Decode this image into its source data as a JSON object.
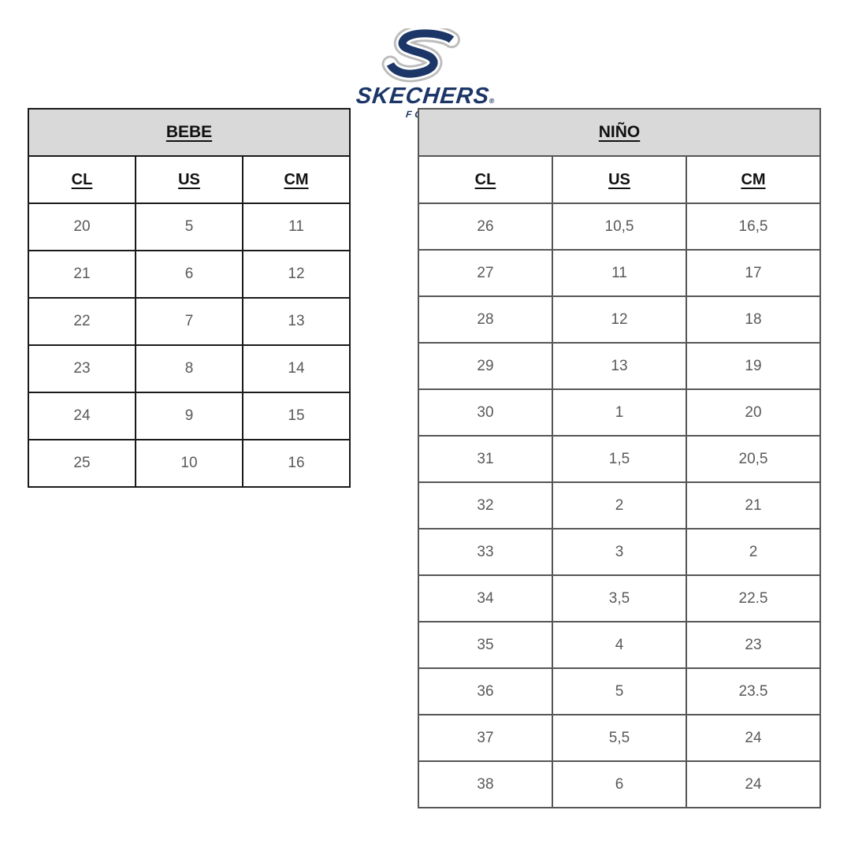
{
  "logo": {
    "brand": "SKECHERS",
    "registered": "®",
    "tagline": "FOOTWEAR",
    "navy": "#1c3667",
    "gray": "#bcbcbc"
  },
  "colors": {
    "page_bg": "#ffffff",
    "header_bg": "#d9d9d9",
    "header_text": "#111111",
    "cell_text": "#595959",
    "table1_border": "#1a1a1a",
    "table2_border": "#565656"
  },
  "tables": [
    {
      "id": "bebe",
      "title": "BEBE",
      "columns": [
        "CL",
        "US",
        "CM"
      ],
      "rows": [
        [
          "20",
          "5",
          "11"
        ],
        [
          "21",
          "6",
          "12"
        ],
        [
          "22",
          "7",
          "13"
        ],
        [
          "23",
          "8",
          "14"
        ],
        [
          "24",
          "9",
          "15"
        ],
        [
          "25",
          "10",
          "16"
        ]
      ]
    },
    {
      "id": "nino",
      "title": "NIÑO",
      "columns": [
        "CL",
        "US",
        "CM"
      ],
      "rows": [
        [
          "26",
          "10,5",
          "16,5"
        ],
        [
          "27",
          "11",
          "17"
        ],
        [
          "28",
          "12",
          "18"
        ],
        [
          "29",
          "13",
          "19"
        ],
        [
          "30",
          "1",
          "20"
        ],
        [
          "31",
          "1,5",
          "20,5"
        ],
        [
          "32",
          "2",
          "21"
        ],
        [
          "33",
          "3",
          "2"
        ],
        [
          "34",
          "3,5",
          "22.5"
        ],
        [
          "35",
          "4",
          "23"
        ],
        [
          "36",
          "5",
          "23.5"
        ],
        [
          "37",
          "5,5",
          "24"
        ],
        [
          "38",
          "6",
          "24"
        ]
      ]
    }
  ]
}
